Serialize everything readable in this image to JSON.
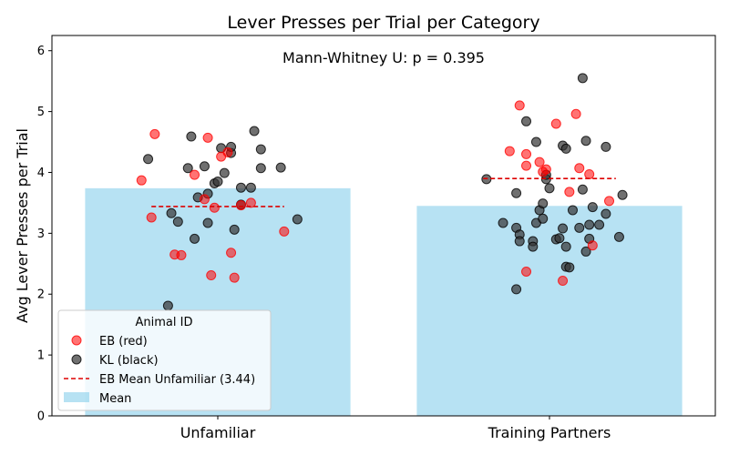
{
  "chart_data": {
    "type": "bar",
    "title": "Lever Presses per Trial per Category",
    "annotation": "Mann-Whitney U: p = 0.395",
    "xlabel": "",
    "ylabel": "Avg Lever Presses per Trial",
    "ylim": [
      0,
      6.25
    ],
    "yticks": [
      "0",
      "1",
      "2",
      "3",
      "4",
      "5",
      "6"
    ],
    "categories": [
      "Unfamiliar",
      "Training Partners"
    ],
    "grid": false,
    "legend_position": "lower-left",
    "legend_title": "Animal ID",
    "legend_entries": [
      "EB (red)",
      "KL (black)",
      "EB Mean Unfamiliar (3.44)",
      "Mean"
    ],
    "bar_color": "#87ceeb",
    "series": [
      {
        "kind": "bar",
        "values": [
          3.74,
          3.45
        ]
      },
      {
        "kind": "scatter",
        "color": "#ff0000",
        "points": [
          {
            "c": 0,
            "jitter": -0.23,
            "y": 3.87
          },
          {
            "c": 0,
            "jitter": -0.19,
            "y": 4.63
          },
          {
            "c": 0,
            "jitter": -0.2,
            "y": 3.26
          },
          {
            "c": 0,
            "jitter": -0.13,
            "y": 2.65
          },
          {
            "c": 0,
            "jitter": -0.11,
            "y": 2.64
          },
          {
            "c": 0,
            "jitter": -0.07,
            "y": 3.96
          },
          {
            "c": 0,
            "jitter": -0.04,
            "y": 3.56
          },
          {
            "c": 0,
            "jitter": -0.03,
            "y": 4.57
          },
          {
            "c": 0,
            "jitter": -0.02,
            "y": 2.31
          },
          {
            "c": 0,
            "jitter": -0.01,
            "y": 3.42
          },
          {
            "c": 0,
            "jitter": 0.01,
            "y": 4.26
          },
          {
            "c": 0,
            "jitter": 0.03,
            "y": 4.33
          },
          {
            "c": 0,
            "jitter": 0.04,
            "y": 2.68
          },
          {
            "c": 0,
            "jitter": 0.05,
            "y": 2.27
          },
          {
            "c": 0,
            "jitter": 0.07,
            "y": 3.46
          },
          {
            "c": 0,
            "jitter": 0.1,
            "y": 3.5
          },
          {
            "c": 0,
            "jitter": 0.2,
            "y": 3.03
          },
          {
            "c": 1,
            "jitter": -0.12,
            "y": 4.35
          },
          {
            "c": 1,
            "jitter": -0.09,
            "y": 5.1
          },
          {
            "c": 1,
            "jitter": -0.07,
            "y": 4.3
          },
          {
            "c": 1,
            "jitter": -0.07,
            "y": 4.11
          },
          {
            "c": 1,
            "jitter": -0.07,
            "y": 2.37
          },
          {
            "c": 1,
            "jitter": -0.03,
            "y": 4.17
          },
          {
            "c": 1,
            "jitter": -0.02,
            "y": 4.01
          },
          {
            "c": 1,
            "jitter": -0.01,
            "y": 4.05
          },
          {
            "c": 1,
            "jitter": 0.02,
            "y": 4.8
          },
          {
            "c": 1,
            "jitter": 0.04,
            "y": 2.22
          },
          {
            "c": 1,
            "jitter": 0.06,
            "y": 3.68
          },
          {
            "c": 1,
            "jitter": 0.08,
            "y": 4.96
          },
          {
            "c": 1,
            "jitter": 0.09,
            "y": 4.07
          },
          {
            "c": 1,
            "jitter": 0.12,
            "y": 3.97
          },
          {
            "c": 1,
            "jitter": 0.13,
            "y": 2.8
          },
          {
            "c": 1,
            "jitter": 0.18,
            "y": 3.53
          }
        ]
      },
      {
        "kind": "scatter",
        "color": "#333333",
        "points": [
          {
            "c": 0,
            "jitter": -0.21,
            "y": 4.22
          },
          {
            "c": 0,
            "jitter": -0.15,
            "y": 1.81
          },
          {
            "c": 0,
            "jitter": -0.14,
            "y": 3.33
          },
          {
            "c": 0,
            "jitter": -0.12,
            "y": 3.19
          },
          {
            "c": 0,
            "jitter": -0.09,
            "y": 4.07
          },
          {
            "c": 0,
            "jitter": -0.08,
            "y": 4.59
          },
          {
            "c": 0,
            "jitter": -0.07,
            "y": 2.91
          },
          {
            "c": 0,
            "jitter": -0.06,
            "y": 3.59
          },
          {
            "c": 0,
            "jitter": -0.04,
            "y": 4.1
          },
          {
            "c": 0,
            "jitter": -0.03,
            "y": 3.65
          },
          {
            "c": 0,
            "jitter": -0.03,
            "y": 3.17
          },
          {
            "c": 0,
            "jitter": -0.01,
            "y": 3.82
          },
          {
            "c": 0,
            "jitter": 0.0,
            "y": 3.85
          },
          {
            "c": 0,
            "jitter": 0.01,
            "y": 4.4
          },
          {
            "c": 0,
            "jitter": 0.02,
            "y": 3.99
          },
          {
            "c": 0,
            "jitter": 0.04,
            "y": 4.32
          },
          {
            "c": 0,
            "jitter": 0.04,
            "y": 4.42
          },
          {
            "c": 0,
            "jitter": 0.05,
            "y": 3.06
          },
          {
            "c": 0,
            "jitter": 0.07,
            "y": 3.75
          },
          {
            "c": 0,
            "jitter": 0.07,
            "y": 3.47
          },
          {
            "c": 0,
            "jitter": 0.1,
            "y": 3.75
          },
          {
            "c": 0,
            "jitter": 0.11,
            "y": 4.68
          },
          {
            "c": 0,
            "jitter": 0.13,
            "y": 4.07
          },
          {
            "c": 0,
            "jitter": 0.13,
            "y": 4.38
          },
          {
            "c": 0,
            "jitter": 0.19,
            "y": 4.08
          },
          {
            "c": 0,
            "jitter": 0.24,
            "y": 3.23
          },
          {
            "c": 1,
            "jitter": -0.19,
            "y": 3.89
          },
          {
            "c": 1,
            "jitter": -0.14,
            "y": 3.17
          },
          {
            "c": 1,
            "jitter": -0.1,
            "y": 2.08
          },
          {
            "c": 1,
            "jitter": -0.1,
            "y": 3.66
          },
          {
            "c": 1,
            "jitter": -0.1,
            "y": 3.09
          },
          {
            "c": 1,
            "jitter": -0.09,
            "y": 2.98
          },
          {
            "c": 1,
            "jitter": -0.09,
            "y": 2.87
          },
          {
            "c": 1,
            "jitter": -0.07,
            "y": 4.84
          },
          {
            "c": 1,
            "jitter": -0.05,
            "y": 2.87
          },
          {
            "c": 1,
            "jitter": -0.05,
            "y": 2.78
          },
          {
            "c": 1,
            "jitter": -0.04,
            "y": 4.5
          },
          {
            "c": 1,
            "jitter": -0.04,
            "y": 3.17
          },
          {
            "c": 1,
            "jitter": -0.03,
            "y": 3.38
          },
          {
            "c": 1,
            "jitter": -0.02,
            "y": 3.24
          },
          {
            "c": 1,
            "jitter": -0.02,
            "y": 3.49
          },
          {
            "c": 1,
            "jitter": -0.01,
            "y": 3.89
          },
          {
            "c": 1,
            "jitter": -0.01,
            "y": 3.96
          },
          {
            "c": 1,
            "jitter": 0.0,
            "y": 3.74
          },
          {
            "c": 1,
            "jitter": 0.02,
            "y": 2.9
          },
          {
            "c": 1,
            "jitter": 0.03,
            "y": 2.92
          },
          {
            "c": 1,
            "jitter": 0.04,
            "y": 3.08
          },
          {
            "c": 1,
            "jitter": 0.04,
            "y": 4.44
          },
          {
            "c": 1,
            "jitter": 0.05,
            "y": 2.78
          },
          {
            "c": 1,
            "jitter": 0.05,
            "y": 4.39
          },
          {
            "c": 1,
            "jitter": 0.05,
            "y": 2.45
          },
          {
            "c": 1,
            "jitter": 0.06,
            "y": 2.44
          },
          {
            "c": 1,
            "jitter": 0.07,
            "y": 3.38
          },
          {
            "c": 1,
            "jitter": 0.09,
            "y": 3.09
          },
          {
            "c": 1,
            "jitter": 0.1,
            "y": 3.72
          },
          {
            "c": 1,
            "jitter": 0.1,
            "y": 5.55
          },
          {
            "c": 1,
            "jitter": 0.11,
            "y": 4.52
          },
          {
            "c": 1,
            "jitter": 0.11,
            "y": 2.7
          },
          {
            "c": 1,
            "jitter": 0.12,
            "y": 2.91
          },
          {
            "c": 1,
            "jitter": 0.12,
            "y": 3.14
          },
          {
            "c": 1,
            "jitter": 0.13,
            "y": 3.43
          },
          {
            "c": 1,
            "jitter": 0.15,
            "y": 3.14
          },
          {
            "c": 1,
            "jitter": 0.17,
            "y": 4.42
          },
          {
            "c": 1,
            "jitter": 0.17,
            "y": 3.32
          },
          {
            "c": 1,
            "jitter": 0.21,
            "y": 2.94
          },
          {
            "c": 1,
            "jitter": 0.22,
            "y": 3.63
          }
        ]
      },
      {
        "kind": "mean_line",
        "color": "#dd0000",
        "lines": [
          {
            "c": 0,
            "y": 3.44,
            "half_width": 0.2
          },
          {
            "c": 1,
            "y": 3.9,
            "half_width": 0.2
          }
        ]
      }
    ]
  }
}
